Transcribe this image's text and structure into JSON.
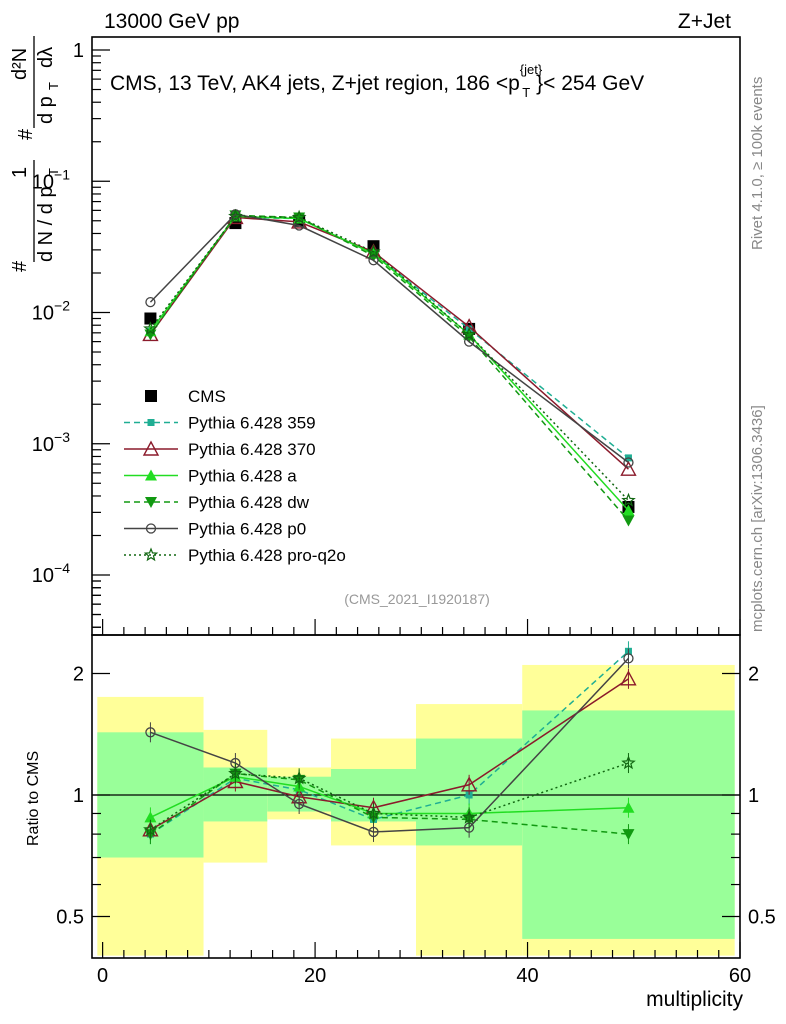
{
  "header": {
    "left": "13000 GeV pp",
    "right": "Z+Jet"
  },
  "side_labels": {
    "rivet": "Rivet 4.1.0, ≥ 100k events",
    "mcplots": "mcplots.cern.ch [arXiv:1306.3436]"
  },
  "analysis_id": "(CMS_2021_I1920187)",
  "chart_data": [
    {
      "type": "line",
      "panel": "main",
      "title_parts": {
        "prefix": "CMS, 13 TeV, AK4 jets, Z+jet region, 186 <p",
        "sup": "{jet}",
        "sub": "T",
        "suffix": "}< 254 GeV"
      },
      "ylabel_parts": {
        "hash": "#",
        "one": "1",
        "dN": "d N / d p",
        "T": "T",
        "d2N": "d²N",
        "dpT": "d p",
        "dlambda": "dλ"
      },
      "yscale": "log",
      "ylim": [
        3e-05,
        1.5
      ],
      "xlim": [
        -1,
        60
      ],
      "y_ticks": [
        {
          "value": 1,
          "label": "1"
        },
        {
          "value": 0.1,
          "base": "10",
          "exp": "−1"
        },
        {
          "value": 0.01,
          "base": "10",
          "exp": "−2"
        },
        {
          "value": 0.001,
          "base": "10",
          "exp": "−3"
        },
        {
          "value": 0.0001,
          "base": "10",
          "exp": "−4"
        }
      ],
      "x": [
        4.5,
        12.5,
        18.5,
        25.5,
        34.5,
        49.5
      ],
      "series": [
        {
          "name": "CMS",
          "legend": "CMS",
          "color": "#000000",
          "marker": "square",
          "line": "none",
          "values": [
            0.009,
            0.048,
            0.05,
            0.032,
            0.0075,
            0.00033
          ]
        },
        {
          "name": "Pythia 6.428 359",
          "legend": "Pythia 6.428 359",
          "color": "#1fae93",
          "marker": "small-square",
          "line": "dashed",
          "values": [
            0.0072,
            0.053,
            0.052,
            0.028,
            0.0075,
            0.00078
          ]
        },
        {
          "name": "Pythia 6.428 370",
          "legend": "Pythia 6.428 370",
          "color": "#8b1a2b",
          "marker": "open-triangle",
          "line": "solid",
          "values": [
            0.0068,
            0.053,
            0.049,
            0.029,
            0.0078,
            0.00064
          ]
        },
        {
          "name": "Pythia 6.428 a",
          "legend": "Pythia 6.428 a",
          "color": "#22dd22",
          "marker": "triangle",
          "line": "solid",
          "values": [
            0.0072,
            0.054,
            0.052,
            0.028,
            0.0068,
            0.00031
          ]
        },
        {
          "name": "Pythia 6.428 dw",
          "legend": "Pythia 6.428 dw",
          "color": "#119911",
          "marker": "down-triangle",
          "line": "dashed",
          "values": [
            0.0068,
            0.055,
            0.053,
            0.027,
            0.0065,
            0.00026
          ]
        },
        {
          "name": "Pythia 6.428 p0",
          "legend": "Pythia 6.428 p0",
          "color": "#444444",
          "marker": "open-circle",
          "line": "solid",
          "values": [
            0.012,
            0.056,
            0.046,
            0.025,
            0.006,
            0.00072
          ]
        },
        {
          "name": "Pythia 6.428 pro-q2o",
          "legend": "Pythia 6.428 pro-q2o",
          "color": "#116611",
          "marker": "open-star",
          "line": "dotted",
          "values": [
            0.0075,
            0.054,
            0.053,
            0.029,
            0.0068,
            0.00037
          ]
        }
      ]
    },
    {
      "type": "line",
      "panel": "ratio",
      "ylabel": "Ratio to CMS",
      "xlabel": "multiplicity",
      "yscale": "log",
      "ylim": [
        0.4,
        2.3
      ],
      "xlim": [
        -1,
        60
      ],
      "y_ticks": [
        {
          "value": 2,
          "label": "2"
        },
        {
          "value": 1,
          "label": "1"
        },
        {
          "value": 0.5,
          "label": "0.5"
        }
      ],
      "x_ticks": [
        {
          "value": 0,
          "label": "0"
        },
        {
          "value": 20,
          "label": "20"
        },
        {
          "value": 40,
          "label": "40"
        },
        {
          "value": 60,
          "label": "60"
        }
      ],
      "bands": [
        {
          "x0": -0.5,
          "x1": 9.5,
          "yellow": [
            0.4,
            1.75
          ],
          "green": [
            0.7,
            1.43
          ]
        },
        {
          "x0": 9.5,
          "x1": 15.5,
          "yellow": [
            0.68,
            1.45
          ],
          "green": [
            0.86,
            1.17
          ]
        },
        {
          "x0": 15.5,
          "x1": 21.5,
          "yellow": [
            0.87,
            1.17
          ],
          "green": [
            0.91,
            1.11
          ]
        },
        {
          "x0": 21.5,
          "x1": 29.5,
          "yellow": [
            0.75,
            1.38
          ],
          "green": [
            0.86,
            1.16
          ]
        },
        {
          "x0": 29.5,
          "x1": 39.5,
          "yellow": [
            0.4,
            1.68
          ],
          "green": [
            0.75,
            1.38
          ]
        },
        {
          "x0": 39.5,
          "x1": 59.5,
          "yellow": [
            0.4,
            2.1
          ],
          "green": [
            0.44,
            1.62
          ]
        }
      ],
      "series": [
        {
          "name": "Pythia 6.428 359",
          "values": [
            0.8,
            1.1,
            1.03,
            0.87,
            1.0,
            2.27
          ]
        },
        {
          "name": "Pythia 6.428 370",
          "values": [
            0.82,
            1.08,
            0.99,
            0.93,
            1.06,
            1.94
          ]
        },
        {
          "name": "Pythia 6.428 a",
          "values": [
            0.88,
            1.11,
            1.05,
            0.9,
            0.9,
            0.93
          ]
        },
        {
          "name": "Pythia 6.428 dw",
          "values": [
            0.8,
            1.13,
            1.09,
            0.88,
            0.87,
            0.8
          ]
        },
        {
          "name": "Pythia 6.428 p0",
          "values": [
            1.43,
            1.2,
            0.95,
            0.81,
            0.83,
            2.18
          ]
        },
        {
          "name": "Pythia 6.428 pro-q2o",
          "values": [
            0.82,
            1.13,
            1.1,
            0.9,
            0.88,
            1.2
          ]
        }
      ]
    }
  ]
}
